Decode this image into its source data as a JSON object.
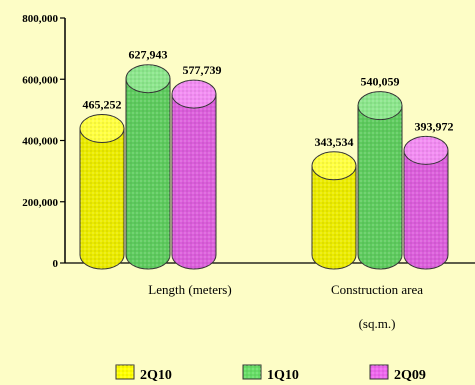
{
  "chart_data": {
    "type": "bar",
    "categories": [
      "Length (meters)",
      "Construction area"
    ],
    "category_label_lines": [
      [
        "Length  (meters)"
      ],
      [
        "Construction area",
        "(sq.m.)"
      ]
    ],
    "series": [
      {
        "name": "2Q10",
        "values": [
          465252,
          343534
        ],
        "color": "#ffff00"
      },
      {
        "name": "1Q10",
        "values": [
          627943,
          540059
        ],
        "color": "#66dd66"
      },
      {
        "name": "2Q09",
        "values": [
          577739,
          393972
        ],
        "color": "#ee66ee"
      }
    ],
    "data_labels": [
      [
        "465,252",
        "343,534"
      ],
      [
        "627,943",
        "540,059"
      ],
      [
        "577,739",
        "393,972"
      ]
    ],
    "ylim": [
      0,
      800000
    ],
    "yticks": [
      0,
      200000,
      400000,
      600000,
      800000
    ],
    "ytick_labels": [
      "0",
      "200,000",
      "400,000",
      "600,000",
      "800,000"
    ],
    "legend_position": "bottom",
    "grid": false,
    "title": "",
    "xlabel": "",
    "ylabel": ""
  }
}
